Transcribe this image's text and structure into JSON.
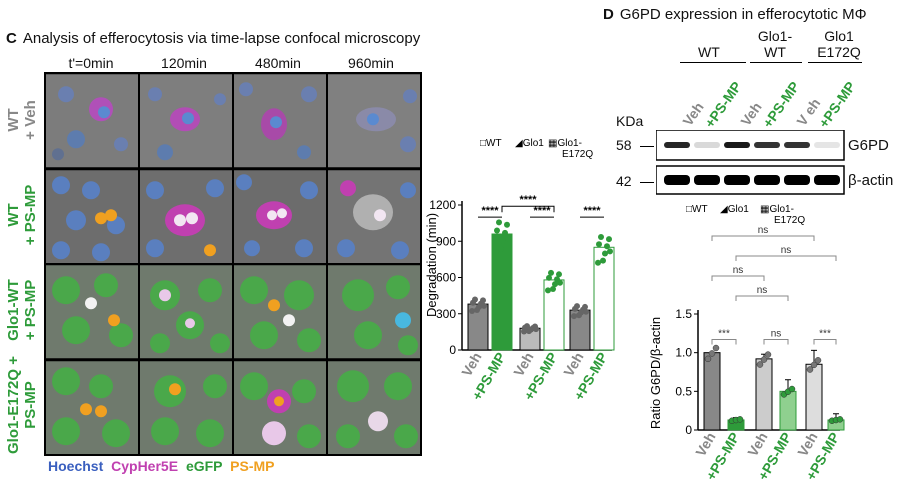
{
  "panel_c": {
    "letter": "C",
    "title": "Analysis of efferocytosis via time-lapse confocal microscopy",
    "timepoints": [
      "t'=0min",
      "120min",
      "480min",
      "960min"
    ],
    "row_labels": [
      {
        "line1": "WT",
        "line2": "+ Veh",
        "color": "#888888"
      },
      {
        "line1": "WT",
        "line2": "+ PS-MP",
        "color": "#2e9b3a"
      },
      {
        "line1": "Glo1-WT",
        "line2": "+ PS-MP",
        "color": "#2e9b3a"
      },
      {
        "line1": "Glo1-E172Q +",
        "line2": "PS-MP",
        "color": "#2e9b3a"
      }
    ],
    "stains": [
      {
        "label": "Hoechst",
        "color": "#3a5fbf"
      },
      {
        "label": "CypHer5E",
        "color": "#c040b0"
      },
      {
        "label": "eGFP",
        "color": "#2e9b3a"
      },
      {
        "label": "PS-MP",
        "color": "#f0a020"
      }
    ]
  },
  "panel_d": {
    "letter": "D",
    "title": "G6PD expression in efferocytotic MΦ",
    "groups": [
      {
        "line1": "WT",
        "line2": ""
      },
      {
        "line1": "Glo1-",
        "line2": "WT"
      },
      {
        "line1": "Glo1",
        "line2": "E172Q"
      }
    ],
    "lanes": [
      "Veh",
      "+PS-MP",
      "Veh",
      "+PS-MP",
      "V eh",
      "+PS-MP"
    ],
    "kda_label": "KDa",
    "markers": [
      "58",
      "42"
    ],
    "band_labels": [
      "G6PD",
      "β-actin"
    ],
    "g6pd_intensity": [
      0.85,
      0.15,
      0.9,
      0.8,
      0.8,
      0.1
    ]
  },
  "legend": {
    "wt": "WT",
    "glo1": "Glo1",
    "glo1e_1": "Glo1-",
    "glo1e_2": "E172Q"
  },
  "stats": {
    "sig4": "****",
    "sig3": "***",
    "ns": "ns"
  },
  "colors": {
    "grey": "#888888",
    "green": "#2e9b3a",
    "light_green": "#8fd08f"
  },
  "chart_data": [
    {
      "type": "bar",
      "ylabel": "Degradation (min)",
      "ylim": [
        0,
        1200
      ],
      "yticks": [
        0,
        300,
        600,
        900,
        1200
      ],
      "categories": [
        "Veh",
        "+PS-MP",
        "Veh",
        "+PS-MP",
        "Veh",
        "+PS-MP"
      ],
      "series_groups": [
        "WT",
        "WT",
        "Glo1",
        "Glo1",
        "Glo1-E172Q",
        "Glo1-E172Q"
      ],
      "values": [
        380,
        960,
        180,
        580,
        330,
        850
      ],
      "significance": [
        "****",
        "****",
        "****",
        "****"
      ]
    },
    {
      "type": "bar",
      "ylabel": "Ratio G6PD/β-actin",
      "ylim": [
        0,
        1.5
      ],
      "yticks": [
        0,
        0.5,
        1.0,
        1.5
      ],
      "ytick_labels": [
        "0",
        "0.5",
        "1.0",
        "1.5"
      ],
      "categories": [
        "Veh",
        "+PS-MP",
        "Veh",
        "+PS-MP",
        "Veh",
        "+PS-MP"
      ],
      "series_groups": [
        "WT",
        "WT",
        "Glo1",
        "Glo1",
        "Glo1-E172Q",
        "Glo1-E172Q"
      ],
      "values": [
        1.0,
        0.13,
        0.92,
        0.5,
        0.85,
        0.13
      ],
      "errors": [
        0.0,
        0.03,
        0.06,
        0.15,
        0.18,
        0.08
      ],
      "significance": [
        "***",
        "ns",
        "***",
        "ns",
        "ns",
        "ns",
        "ns"
      ]
    }
  ]
}
